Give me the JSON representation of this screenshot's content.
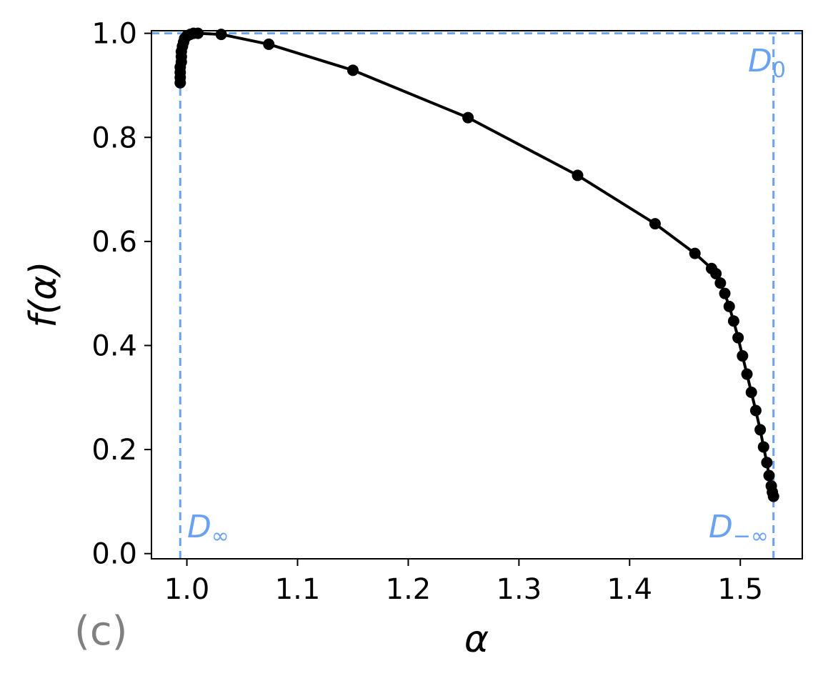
{
  "panel_label": "(c)",
  "colors": {
    "curve": "#000000",
    "reference": "#6aa2f2",
    "panel_label": "#808080"
  },
  "chart_data": {
    "type": "line",
    "title": "",
    "xlabel": "α",
    "ylabel": "f(α)",
    "xlim": [
      0.968,
      1.556
    ],
    "ylim": [
      -0.01,
      1.005
    ],
    "xticks": [
      1.0,
      1.1,
      1.2,
      1.3,
      1.4,
      1.5
    ],
    "xtick_labels": [
      "1.0",
      "1.1",
      "1.2",
      "1.3",
      "1.4",
      "1.5"
    ],
    "yticks": [
      0.0,
      0.2,
      0.4,
      0.6,
      0.8,
      1.0
    ],
    "ytick_labels": [
      "0.0",
      "0.2",
      "0.4",
      "0.6",
      "0.8",
      "1.0"
    ],
    "grid": false,
    "series": [
      {
        "color": "#000000",
        "marker": "circle",
        "x": [
          0.994,
          0.994,
          0.994,
          0.994,
          0.995,
          0.995,
          0.995,
          0.996,
          0.997,
          0.998,
          1.0,
          1.003,
          1.006,
          1.01,
          1.031,
          1.074,
          1.15,
          1.254,
          1.353,
          1.423,
          1.459,
          1.474,
          1.478,
          1.482,
          1.486,
          1.49,
          1.494,
          1.498,
          1.502,
          1.506,
          1.51,
          1.514,
          1.518,
          1.521,
          1.524,
          1.526,
          1.528,
          1.529,
          1.53
        ],
        "y": [
          0.905,
          0.915,
          0.925,
          0.935,
          0.945,
          0.955,
          0.965,
          0.975,
          0.983,
          0.99,
          0.995,
          0.998,
          1.0,
          1.0,
          0.998,
          0.979,
          0.929,
          0.838,
          0.727,
          0.634,
          0.577,
          0.548,
          0.538,
          0.52,
          0.5,
          0.475,
          0.447,
          0.415,
          0.38,
          0.345,
          0.31,
          0.275,
          0.238,
          0.205,
          0.175,
          0.15,
          0.13,
          0.118,
          0.11
        ]
      }
    ],
    "reference_lines": [
      {
        "orientation": "horizontal",
        "value": 1.0,
        "label": "D",
        "label_sub": "0"
      },
      {
        "orientation": "vertical",
        "value": 0.994,
        "label": "D",
        "label_sub": "∞"
      },
      {
        "orientation": "vertical",
        "value": 1.53,
        "label": "D",
        "label_sub": "−∞"
      }
    ]
  }
}
